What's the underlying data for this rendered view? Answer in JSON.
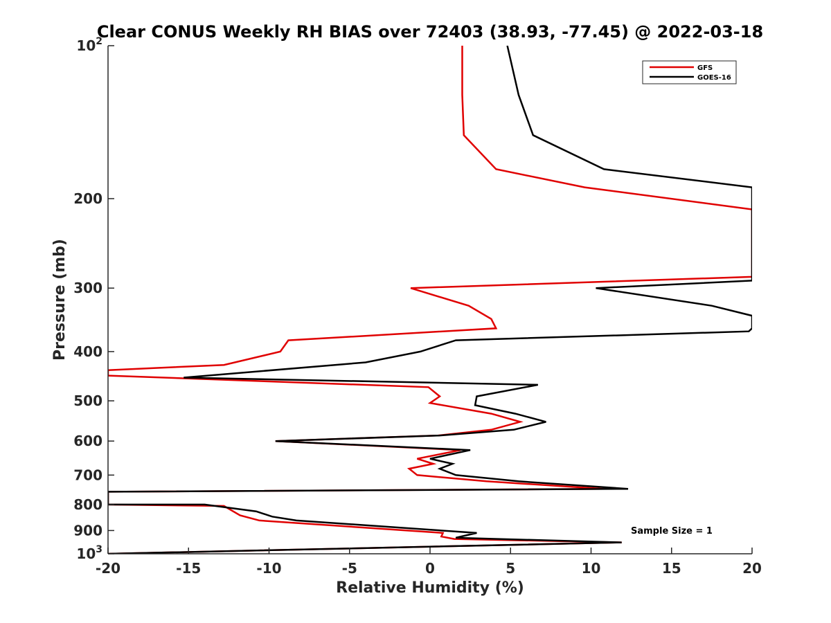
{
  "chart_data": {
    "type": "line",
    "title": "Clear CONUS Weekly RH BIAS over 72403 (38.93, -77.45) @ 2022-03-18",
    "xlabel": "Relative Humidity (%)",
    "ylabel": "Pressure (mb)",
    "xlim": [
      -20,
      20
    ],
    "ylim": [
      100,
      1000
    ],
    "yscale": "log",
    "yreversed": true,
    "grid": false,
    "legend_position": "top-right",
    "xticks": [
      -20,
      -15,
      -10,
      -5,
      0,
      5,
      10,
      15,
      20
    ],
    "xtick_labels": [
      "-20",
      "-15",
      "-10",
      "-5",
      "0",
      "5",
      "10",
      "15",
      "20"
    ],
    "yticks": [
      100,
      200,
      300,
      400,
      500,
      600,
      700,
      800,
      900,
      1000
    ],
    "ytick_labels": [
      {
        "base": "10",
        "exp": "2"
      },
      {
        "base": "200",
        "exp": ""
      },
      {
        "base": "300",
        "exp": ""
      },
      {
        "base": "400",
        "exp": ""
      },
      {
        "base": "500",
        "exp": ""
      },
      {
        "base": "600",
        "exp": ""
      },
      {
        "base": "700",
        "exp": ""
      },
      {
        "base": "800",
        "exp": ""
      },
      {
        "base": "900",
        "exp": ""
      },
      {
        "base": "10",
        "exp": "3"
      }
    ],
    "annotation": "Sample Size = 1",
    "series": [
      {
        "name": "GFS",
        "color": "#e00000",
        "points": [
          [
            2.0,
            100
          ],
          [
            2.0,
            125
          ],
          [
            2.1,
            150
          ],
          [
            4.1,
            175
          ],
          [
            9.6,
            190
          ],
          [
            20.0,
            210
          ],
          [
            20.0,
            285
          ],
          [
            -1.2,
            300
          ],
          [
            2.4,
            325
          ],
          [
            3.8,
            345
          ],
          [
            4.1,
            360
          ],
          [
            -8.8,
            380
          ],
          [
            -9.3,
            400
          ],
          [
            -12.8,
            425
          ],
          [
            -20.0,
            435
          ],
          [
            -20.0,
            446
          ],
          [
            -0.1,
            470
          ],
          [
            0.6,
            490
          ],
          [
            0.0,
            505
          ],
          [
            3.8,
            530
          ],
          [
            5.6,
            550
          ],
          [
            3.8,
            570
          ],
          [
            0.5,
            585
          ],
          [
            -9.6,
            600
          ],
          [
            1.9,
            625
          ],
          [
            -0.8,
            650
          ],
          [
            0.2,
            665
          ],
          [
            -1.3,
            680
          ],
          [
            -0.8,
            700
          ],
          [
            3.5,
            720
          ],
          [
            10.8,
            745
          ],
          [
            -20.0,
            755
          ],
          [
            -20.0,
            800
          ],
          [
            -12.8,
            805
          ],
          [
            -11.8,
            840
          ],
          [
            -10.6,
            860
          ],
          [
            0.8,
            910
          ],
          [
            0.7,
            925
          ],
          [
            1.5,
            935
          ],
          [
            11.9,
            950
          ],
          [
            -20.0,
            1000
          ]
        ]
      },
      {
        "name": "GOES-16",
        "color": "#000000",
        "points": [
          [
            4.8,
            100
          ],
          [
            5.5,
            125
          ],
          [
            6.4,
            150
          ],
          [
            10.8,
            175
          ],
          [
            20.0,
            190
          ],
          [
            20.0,
            290
          ],
          [
            10.3,
            300
          ],
          [
            17.5,
            325
          ],
          [
            20.0,
            340
          ],
          [
            20.0,
            360
          ],
          [
            19.8,
            365
          ],
          [
            1.6,
            380
          ],
          [
            -0.6,
            400
          ],
          [
            -4.0,
            420
          ],
          [
            -15.3,
            450
          ],
          [
            6.7,
            465
          ],
          [
            2.9,
            490
          ],
          [
            2.8,
            510
          ],
          [
            5.3,
            530
          ],
          [
            7.2,
            550
          ],
          [
            5.2,
            570
          ],
          [
            0.6,
            585
          ],
          [
            -9.6,
            600
          ],
          [
            2.5,
            625
          ],
          [
            0.0,
            650
          ],
          [
            1.4,
            665
          ],
          [
            0.6,
            680
          ],
          [
            1.6,
            700
          ],
          [
            5.5,
            720
          ],
          [
            12.3,
            745
          ],
          [
            -20.0,
            755
          ],
          [
            -20.0,
            800
          ],
          [
            -14.0,
            800
          ],
          [
            -10.8,
            825
          ],
          [
            -9.8,
            845
          ],
          [
            -8.3,
            860
          ],
          [
            2.9,
            910
          ],
          [
            1.6,
            930
          ],
          [
            11.9,
            950
          ],
          [
            -20.0,
            1000
          ]
        ]
      }
    ]
  }
}
